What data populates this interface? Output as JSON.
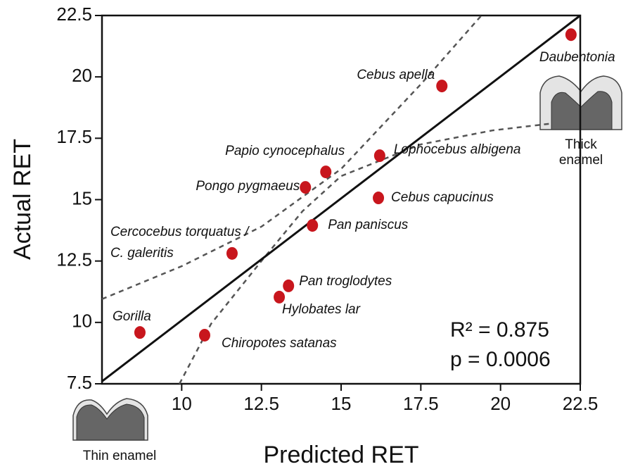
{
  "chart_data": {
    "type": "scatter",
    "x_label": "Predicted RET",
    "y_label": "Actual RET",
    "xlim": [
      7.5,
      22.5
    ],
    "ylim": [
      7.5,
      22.5
    ],
    "xticks": [
      10,
      12.5,
      15,
      17.5,
      20,
      22.5
    ],
    "yticks": [
      7.5,
      10,
      12.5,
      15,
      17.5,
      20,
      22.5
    ],
    "color": "#c8161d",
    "points": [
      {
        "label": [
          "Daubentonia"
        ],
        "x": 22.21,
        "y": 21.72
      },
      {
        "label": [
          "Cebus apella"
        ],
        "x": 18.16,
        "y": 19.63
      },
      {
        "label": [
          "Lophocebus albigena"
        ],
        "x": 16.21,
        "y": 16.79
      },
      {
        "label": [
          "Papio cynocephalus"
        ],
        "x": 14.52,
        "y": 16.13
      },
      {
        "label": [
          "Pongo pygmaeus"
        ],
        "x": 13.88,
        "y": 15.5
      },
      {
        "label": [
          "Cebus capucinus"
        ],
        "x": 16.17,
        "y": 15.07
      },
      {
        "label": [
          "Pan paniscus"
        ],
        "x": 14.1,
        "y": 13.95
      },
      {
        "label": [
          "Cercocebus torquatus /",
          "C. galeritis"
        ],
        "x": 11.58,
        "y": 12.81
      },
      {
        "label": [
          "Pan troglodytes"
        ],
        "x": 13.35,
        "y": 11.49
      },
      {
        "label": [
          "Hylobates lar"
        ],
        "x": 13.06,
        "y": 11.03
      },
      {
        "label": [
          "Gorilla"
        ],
        "x": 8.69,
        "y": 9.59
      },
      {
        "label": [
          "Chiropotes satanas"
        ],
        "x": 10.72,
        "y": 9.48
      }
    ],
    "fit_line": {
      "x": [
        7.5,
        22.5
      ],
      "y": [
        7.6,
        22.5
      ]
    },
    "upper_band": {
      "x": [
        7.5,
        10,
        12.5,
        15,
        17.5,
        19.4
      ],
      "y": [
        10.95,
        12.29,
        13.9,
        16.25,
        19.7,
        22.5
      ]
    },
    "lower_band": {
      "x": [
        9.93,
        10.92,
        12.5,
        13.79,
        15,
        17.5,
        19.75,
        21.6
      ],
      "y": [
        7.5,
        9.94,
        12.5,
        14.53,
        15.96,
        17.25,
        17.82,
        18.1
      ]
    },
    "annotations": [
      "R² = 0.875",
      "p = 0.0006"
    ],
    "icons": {
      "thin": "Thin enamel",
      "thick": [
        "Thick",
        "enamel"
      ]
    }
  }
}
